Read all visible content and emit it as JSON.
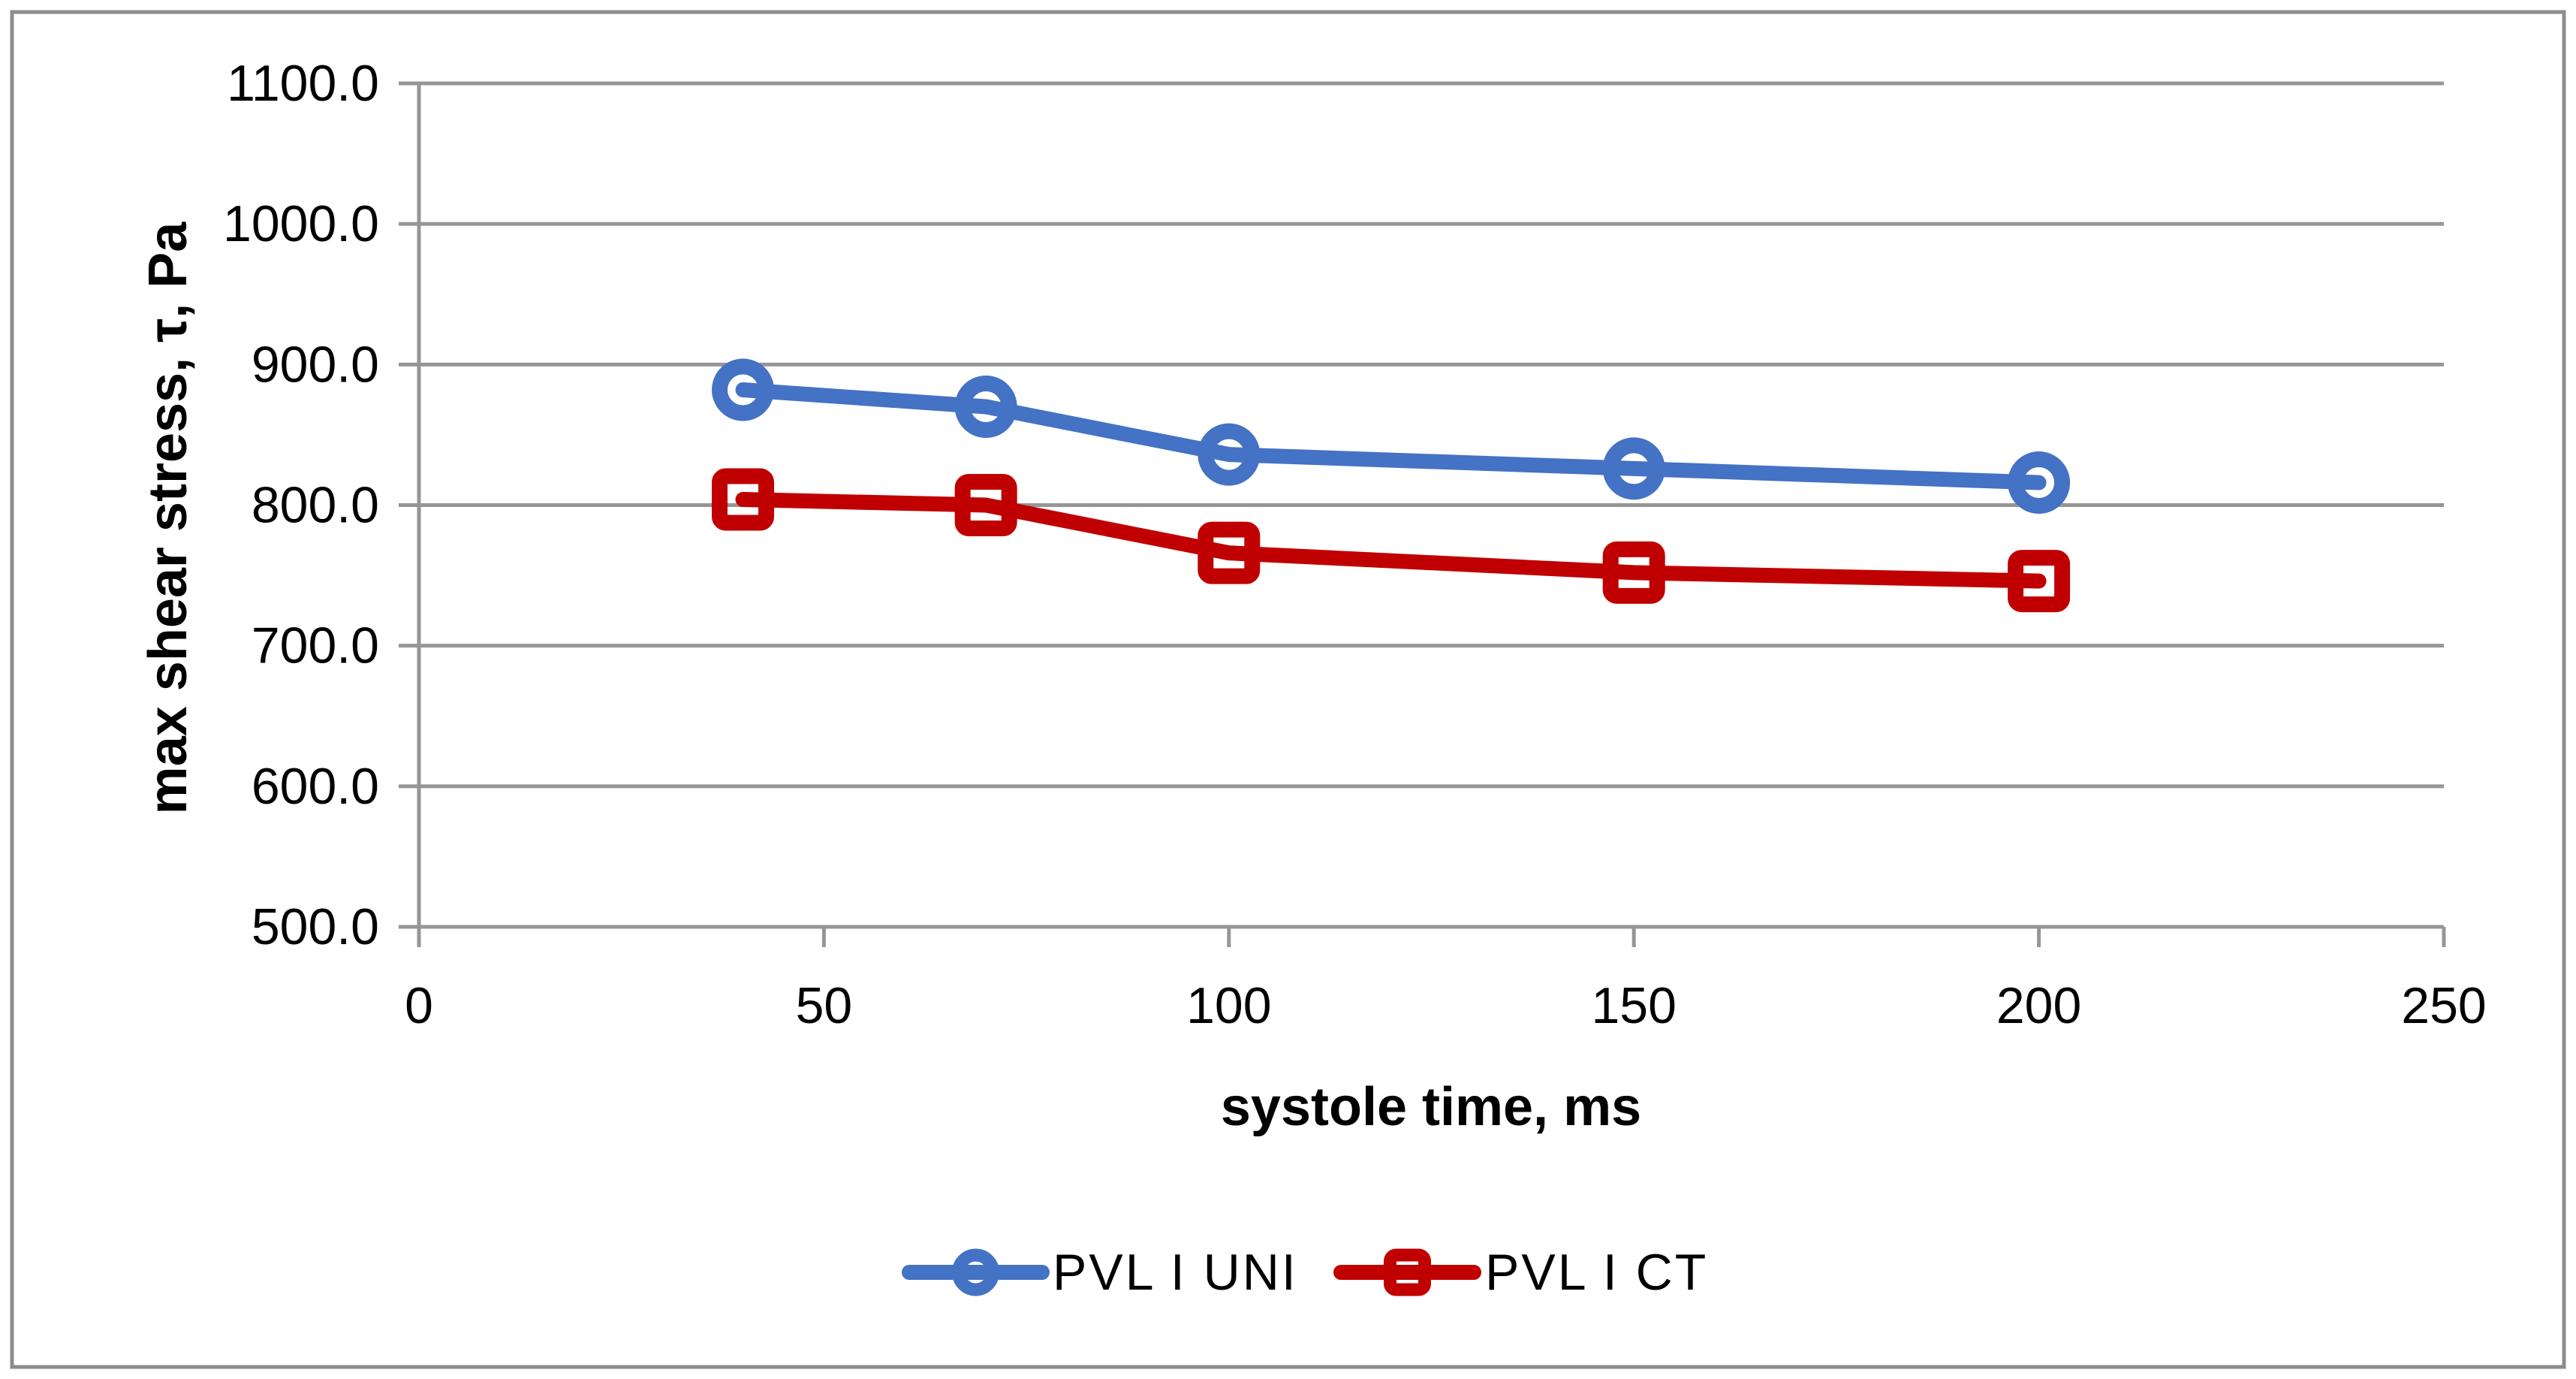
{
  "chart_data": {
    "type": "line",
    "title": "",
    "xlabel": "systole time, ms",
    "ylabel": "max shear stress, τ, Pa",
    "x": [
      40,
      70,
      100,
      150,
      200
    ],
    "series": [
      {
        "name": "PVL I UNI",
        "marker": "circle",
        "color": "#4472C4",
        "values": [
          882,
          870,
          836,
          826,
          816
        ]
      },
      {
        "name": "PVL I CT",
        "marker": "square",
        "color": "#C00000",
        "values": [
          804,
          800,
          766,
          752,
          746
        ]
      }
    ],
    "x_axis": {
      "min": 0,
      "max": 250,
      "tick_step": 50,
      "tick_labels": [
        "0",
        "50",
        "100",
        "150",
        "200",
        "250"
      ]
    },
    "y_axis": {
      "min": 500,
      "max": 1100,
      "tick_step": 100,
      "tick_labels": [
        "1100.0",
        "1000.0",
        "900.0",
        "800.0",
        "700.0",
        "600.0",
        "500.0"
      ]
    },
    "grid": "horizontal",
    "legend_position": "bottom",
    "colors": {
      "gridline": "#969696",
      "axis": "#8C8C8C",
      "border": "#8C8C8C",
      "text": "#000000"
    }
  }
}
